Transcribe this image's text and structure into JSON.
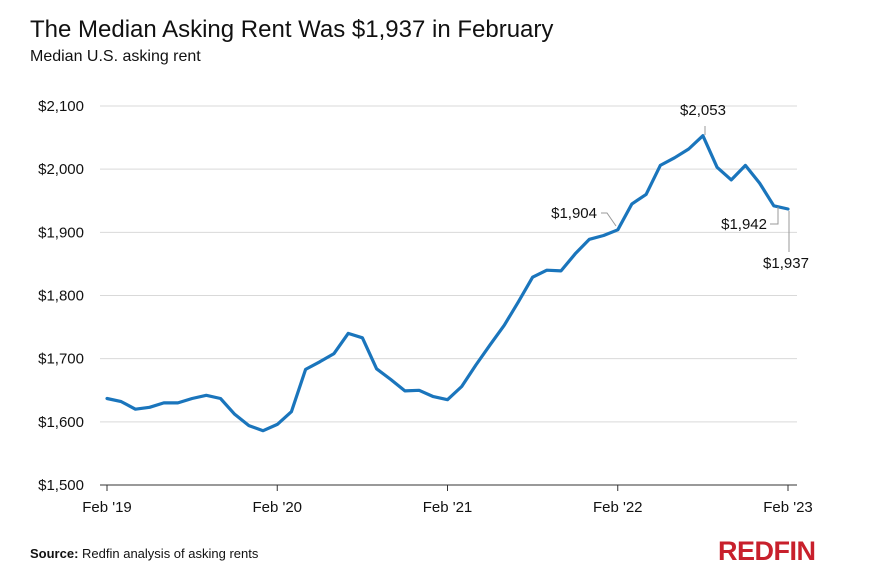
{
  "header": {
    "title": "The Median Asking Rent Was $1,937 in February",
    "subtitle": "Median U.S. asking rent"
  },
  "footer": {
    "source_label": "Source:",
    "source_text": "Redfin analysis of asking rents",
    "logo_text": "REDFIN"
  },
  "colors": {
    "line": "#1a75bc",
    "grid": "#d9d9d9",
    "logo": "#c8202c"
  },
  "chart_data": {
    "type": "line",
    "title": "The Median Asking Rent Was $1,937 in February",
    "subtitle": "Median U.S. asking rent",
    "xlabel": "",
    "ylabel": "",
    "ylim": [
      1500,
      2100
    ],
    "yticks": [
      1500,
      1600,
      1700,
      1800,
      1900,
      2000,
      2100
    ],
    "ytick_labels": [
      "$1,500",
      "$1,600",
      "$1,700",
      "$1,800",
      "$1,900",
      "$2,000",
      "$2,100"
    ],
    "xtick_labels": [
      "Feb '19",
      "Feb '20",
      "Feb '21",
      "Feb '22",
      "Feb '23"
    ],
    "xtick_months": [
      0,
      12,
      24,
      36,
      48
    ],
    "x_unit": "months since Feb 2019",
    "grid": true,
    "legend": "none",
    "series": [
      {
        "name": "Median asking rent",
        "x": [
          0,
          1,
          2,
          3,
          4,
          5,
          6,
          7,
          8,
          9,
          10,
          11,
          12,
          13,
          14,
          15,
          16,
          17,
          18,
          19,
          20,
          21,
          22,
          23,
          24,
          25,
          26,
          27,
          28,
          29,
          30,
          31,
          32,
          33,
          34,
          35,
          36,
          37,
          38,
          39,
          40,
          41,
          42,
          43,
          44,
          45,
          46,
          47,
          48
        ],
        "values": [
          1637,
          1632,
          1620,
          1623,
          1630,
          1630,
          1637,
          1642,
          1637,
          1612,
          1594,
          1586,
          1596,
          1616,
          1683,
          1695,
          1708,
          1740,
          1733,
          1684,
          1667,
          1649,
          1650,
          1640,
          1635,
          1656,
          1690,
          1722,
          1753,
          1790,
          1829,
          1840,
          1839,
          1866,
          1889,
          1895,
          1904,
          1945,
          1960,
          2006,
          2018,
          2032,
          2053,
          2003,
          1983,
          2006,
          1978,
          1942,
          1937
        ]
      }
    ],
    "annotations": [
      {
        "label": "$2,053",
        "x": 42,
        "y": 2053
      },
      {
        "label": "$1,904",
        "x": 36,
        "y": 1904
      },
      {
        "label": "$1,942",
        "x": 47,
        "y": 1942
      },
      {
        "label": "$1,937",
        "x": 48,
        "y": 1937
      }
    ]
  }
}
